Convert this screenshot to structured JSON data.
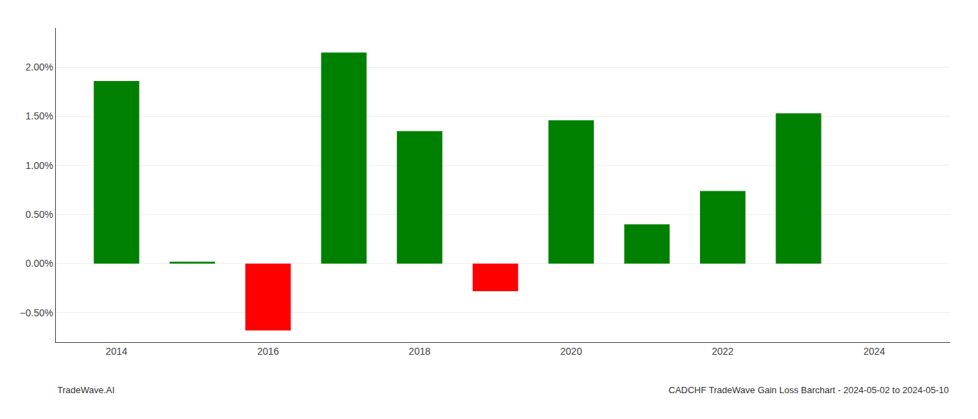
{
  "chart_data": {
    "type": "bar",
    "x": [
      2014,
      2015,
      2016,
      2017,
      2018,
      2019,
      2020,
      2021,
      2022,
      2023,
      2024
    ],
    "values": [
      1.86,
      0.02,
      -0.68,
      2.15,
      1.35,
      -0.28,
      1.46,
      0.4,
      0.74,
      1.53,
      0.0
    ],
    "colors": [
      "#008000",
      "#008000",
      "#ff0000",
      "#008000",
      "#008000",
      "#ff0000",
      "#008000",
      "#008000",
      "#008000",
      "#008000",
      "#008000"
    ],
    "ylim": [
      -0.8,
      2.4
    ],
    "yticks": [
      {
        "value": -0.5,
        "label": "−0.50%"
      },
      {
        "value": 0.0,
        "label": "0.00%"
      },
      {
        "value": 0.5,
        "label": "0.50%"
      },
      {
        "value": 1.0,
        "label": "1.00%"
      },
      {
        "value": 1.5,
        "label": "1.50%"
      },
      {
        "value": 2.0,
        "label": "2.00%"
      }
    ],
    "xlim": [
      2013.2,
      2025.0
    ],
    "xticks": [
      2014,
      2016,
      2018,
      2020,
      2022,
      2024
    ],
    "grid": "y",
    "annotations": [
      "TradeWave.AI",
      "CADCHF TradeWave Gain Loss Barchart - 2024-05-02 to 2024-05-10"
    ]
  }
}
